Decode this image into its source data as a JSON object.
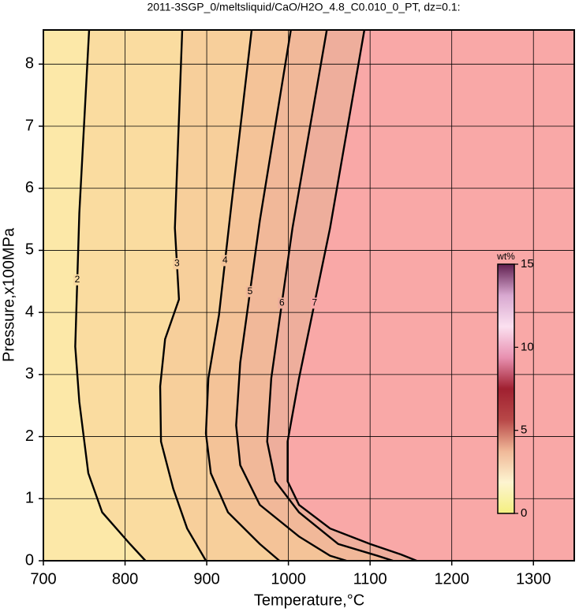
{
  "chart_data": {
    "type": "contour",
    "title": "2011-3SGP_0/meltsliquid/CaO/H2O_4.8_C0.010_0_PT, dz=0.1:",
    "x_label": "Temperature,°C",
    "y_label": "Pressure,x100MPa",
    "xlim": [
      700,
      1350
    ],
    "ylim": [
      0,
      8.55
    ],
    "xticks": [
      700,
      800,
      900,
      1000,
      1100,
      1200,
      1300
    ],
    "yticks": [
      0,
      1,
      2,
      3,
      4,
      5,
      6,
      7,
      8
    ],
    "grid": true,
    "background": "#fce8a8",
    "contours": [
      {
        "level": 2,
        "color": "#fadca0",
        "x": [
          756,
          744,
          739,
          744,
          755,
          772,
          806,
          825
        ],
        "y": [
          8.55,
          5.6,
          3.45,
          2.56,
          1.41,
          0.78,
          0.27,
          0
        ]
      },
      {
        "level": 3,
        "color": "#f7cf9b",
        "x": [
          870,
          861,
          866,
          849,
          843,
          844,
          859,
          876,
          899
        ],
        "y": [
          8.55,
          5.36,
          4.21,
          3.57,
          2.81,
          1.92,
          1.16,
          0.52,
          0
        ]
      },
      {
        "level": 4,
        "color": "#f4c398",
        "x": [
          955,
          930,
          915,
          902,
          899,
          905,
          926,
          965,
          989
        ],
        "y": [
          8.55,
          5.71,
          3.96,
          2.94,
          2.05,
          1.41,
          0.78,
          0.27,
          0
        ]
      },
      {
        "level": 5,
        "color": "#f1b899",
        "x": [
          1003,
          965,
          941,
          936,
          941,
          965,
          1013,
          1051,
          1071
        ],
        "y": [
          8.55,
          5.48,
          3.19,
          2.18,
          1.54,
          0.9,
          0.39,
          0.08,
          0
        ]
      },
      {
        "level": 6,
        "color": "#eeae9c",
        "x": [
          1047,
          1005,
          979,
          974,
          984,
          1013,
          1061,
          1109,
          1128
        ],
        "y": [
          8.55,
          5.36,
          2.94,
          1.92,
          1.28,
          0.78,
          0.27,
          0.08,
          0
        ]
      },
      {
        "level": 7,
        "color": "#f9a8a7",
        "x": [
          1093,
          1051,
          1013,
          999,
          999,
          1013,
          1051,
          1100,
          1138,
          1157
        ],
        "y": [
          8.55,
          5.36,
          2.94,
          1.92,
          1.28,
          0.9,
          0.52,
          0.27,
          0.1,
          0
        ]
      }
    ],
    "colorbar": {
      "label": "wt%",
      "clim": [
        0,
        15
      ],
      "ticks": [
        0,
        5,
        10,
        15
      ],
      "colors": [
        "#f4f080",
        "#fdf4d0",
        "#f0b898",
        "#b84848",
        "#a02030",
        "#e890b0",
        "#fbe0f0",
        "#d8a8d0",
        "#602050"
      ]
    }
  }
}
